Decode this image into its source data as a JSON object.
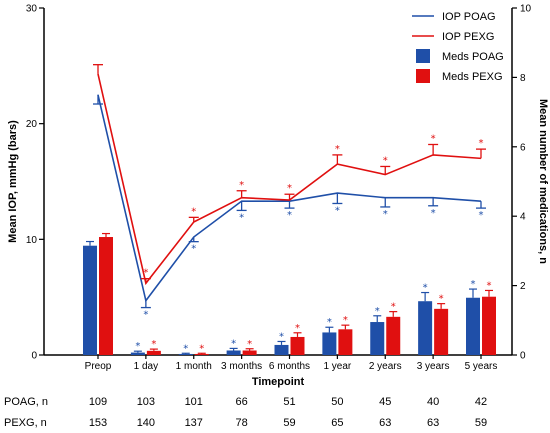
{
  "chart_data": {
    "type": "bar",
    "xlabel": "Timepoint",
    "ylabel_left": "Mean IOP, mmHg (bars)",
    "ylabel_right": "Mean number of medications, n",
    "ylim_left": [
      0,
      30
    ],
    "ylim_right": [
      0,
      10
    ],
    "yticks_left": [
      0,
      10,
      20,
      30
    ],
    "yticks_right": [
      0,
      2,
      4,
      6,
      8,
      10
    ],
    "categories": [
      "Preop",
      "1 day",
      "1 month",
      "3 months",
      "6 months",
      "1 year",
      "2 years",
      "3 years",
      "5 years"
    ],
    "legend_position": "top-right",
    "colors": {
      "poag": "#1f4fa8",
      "pexg": "#e01010"
    },
    "series": [
      {
        "name": "IOP POAG",
        "type": "line",
        "axis": "left",
        "values": [
          22.5,
          4.7,
          10.2,
          13.3,
          13.3,
          14.0,
          13.6,
          13.6,
          13.3
        ],
        "errors": [
          0.8,
          0.6,
          0.4,
          0.8,
          0.6,
          0.9,
          0.8,
          0.7,
          0.6
        ],
        "stars": [
          false,
          true,
          true,
          true,
          true,
          true,
          true,
          true,
          true
        ]
      },
      {
        "name": "IOP PEXG",
        "type": "line",
        "axis": "left",
        "values": [
          24.3,
          6.2,
          11.5,
          13.6,
          13.4,
          16.5,
          15.6,
          17.3,
          17.0
        ],
        "errors": [
          0.8,
          0.4,
          0.4,
          0.6,
          0.5,
          0.8,
          0.7,
          0.9,
          0.8
        ],
        "stars": [
          false,
          true,
          true,
          true,
          true,
          true,
          true,
          true,
          true
        ]
      },
      {
        "name": "Meds POAG",
        "type": "bar",
        "axis": "right",
        "values": [
          3.15,
          0.07,
          0.03,
          0.13,
          0.29,
          0.65,
          0.95,
          1.55,
          1.65
        ],
        "errors": [
          0.12,
          0.04,
          0.02,
          0.06,
          0.1,
          0.15,
          0.18,
          0.25,
          0.25
        ],
        "stars": [
          false,
          true,
          true,
          true,
          true,
          true,
          true,
          true,
          true
        ]
      },
      {
        "name": "Meds PEXG",
        "type": "bar",
        "axis": "right",
        "values": [
          3.4,
          0.12,
          0.03,
          0.13,
          0.52,
          0.74,
          1.1,
          1.33,
          1.68
        ],
        "errors": [
          0.1,
          0.05,
          0.02,
          0.05,
          0.12,
          0.12,
          0.15,
          0.15,
          0.18
        ],
        "stars": [
          false,
          true,
          true,
          true,
          true,
          true,
          true,
          true,
          true
        ]
      }
    ],
    "star_symbol": "*",
    "counts": [
      {
        "label": "POAG, n",
        "values": [
          "109",
          "103",
          "101",
          "66",
          "51",
          "50",
          "45",
          "40",
          "42"
        ]
      },
      {
        "label": "PEXG, n",
        "values": [
          "153",
          "140",
          "137",
          "78",
          "59",
          "65",
          "63",
          "63",
          "59"
        ]
      }
    ]
  }
}
